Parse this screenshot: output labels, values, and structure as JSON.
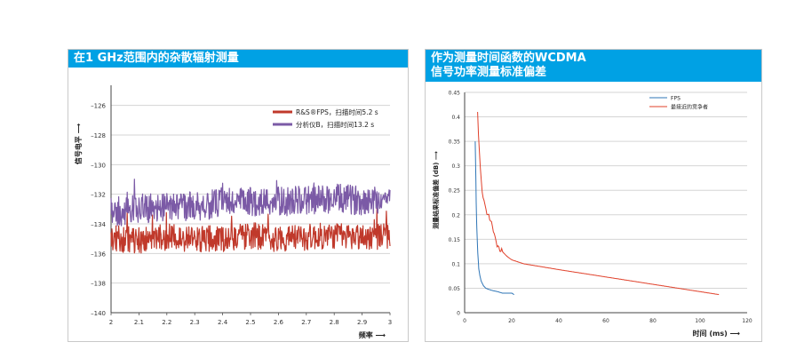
{
  "chart_data": [
    {
      "type": "line",
      "title": "在1 GHz范围内的杂散辐射测量",
      "xlabel": "频率 ⟶",
      "ylabel": "信号电平 ⟶",
      "xlim": [
        2,
        3
      ],
      "ylim": [
        -140,
        -125
      ],
      "x_ticks": [
        "2",
        "2.1",
        "2.2",
        "2.3",
        "2.4",
        "2.5",
        "2.6",
        "2.7",
        "2.8",
        "2.9",
        "3"
      ],
      "y_ticks": [
        "–126",
        "–128",
        "–130",
        "–132",
        "–134",
        "–136",
        "–138",
        "–140"
      ],
      "grid": true,
      "legend_position": "top-right",
      "series": [
        {
          "name": "R&S®FPS，扫描时间5.2 s",
          "color": "#c0392b",
          "mean": -135.0,
          "noise": 0.9,
          "x": [
            2.0,
            2.1,
            2.2,
            2.3,
            2.4,
            2.5,
            2.6,
            2.7,
            2.8,
            2.9,
            3.0
          ],
          "values": [
            -135.0,
            -135.1,
            -134.9,
            -135.0,
            -135.0,
            -134.8,
            -135.0,
            -134.9,
            -134.8,
            -134.9,
            -134.8
          ]
        },
        {
          "name": "分析仪B，扫描时间13.2 s",
          "color": "#7b5aa6",
          "mean": -132.7,
          "noise": 1.0,
          "x": [
            2.0,
            2.1,
            2.2,
            2.3,
            2.4,
            2.5,
            2.6,
            2.7,
            2.8,
            2.9,
            3.0
          ],
          "values": [
            -133.2,
            -133.0,
            -132.8,
            -132.8,
            -132.6,
            -132.5,
            -132.5,
            -132.4,
            -132.3,
            -132.4,
            -132.3
          ]
        }
      ]
    },
    {
      "type": "line",
      "title": "作为测量时间函数的WCDMA 信号功率测量标准偏差",
      "title_lines": [
        "作为测量时间函数的WCDMA",
        "信号功率测量标准偏差"
      ],
      "xlabel": "时间 (ms) ⟶",
      "ylabel": "测量结果标准偏差 (dB) ⟶",
      "xlim": [
        0,
        120
      ],
      "ylim": [
        0,
        0.45
      ],
      "x_ticks": [
        "0",
        "20",
        "40",
        "60",
        "80",
        "100",
        "120"
      ],
      "y_ticks": [
        "0",
        "0.05",
        "0.1",
        "0.15",
        "0.2",
        "0.25",
        "0.3",
        "0.35",
        "0.4",
        "0.45"
      ],
      "grid": true,
      "legend_position": "top-right",
      "series": [
        {
          "name": "FPS",
          "color": "#2e75b6",
          "x": [
            4.5,
            5,
            5.5,
            6,
            6.5,
            7,
            8,
            9,
            10,
            12,
            14,
            16,
            18,
            20,
            21
          ],
          "values": [
            0.35,
            0.2,
            0.13,
            0.09,
            0.075,
            0.065,
            0.055,
            0.05,
            0.048,
            0.045,
            0.043,
            0.04,
            0.04,
            0.04,
            0.037
          ]
        },
        {
          "name": "最接近的竞争者",
          "color": "#e0402a",
          "x": [
            5.5,
            6,
            6.5,
            7,
            8,
            9,
            10,
            11,
            12,
            13,
            14,
            16,
            18,
            20,
            25,
            30,
            40,
            60,
            80,
            100,
            108
          ],
          "values": [
            0.41,
            0.35,
            0.31,
            0.27,
            0.23,
            0.21,
            0.2,
            0.19,
            0.17,
            0.155,
            0.135,
            0.125,
            0.115,
            0.108,
            0.1,
            0.096,
            0.088,
            0.073,
            0.058,
            0.043,
            0.037
          ]
        }
      ]
    }
  ]
}
